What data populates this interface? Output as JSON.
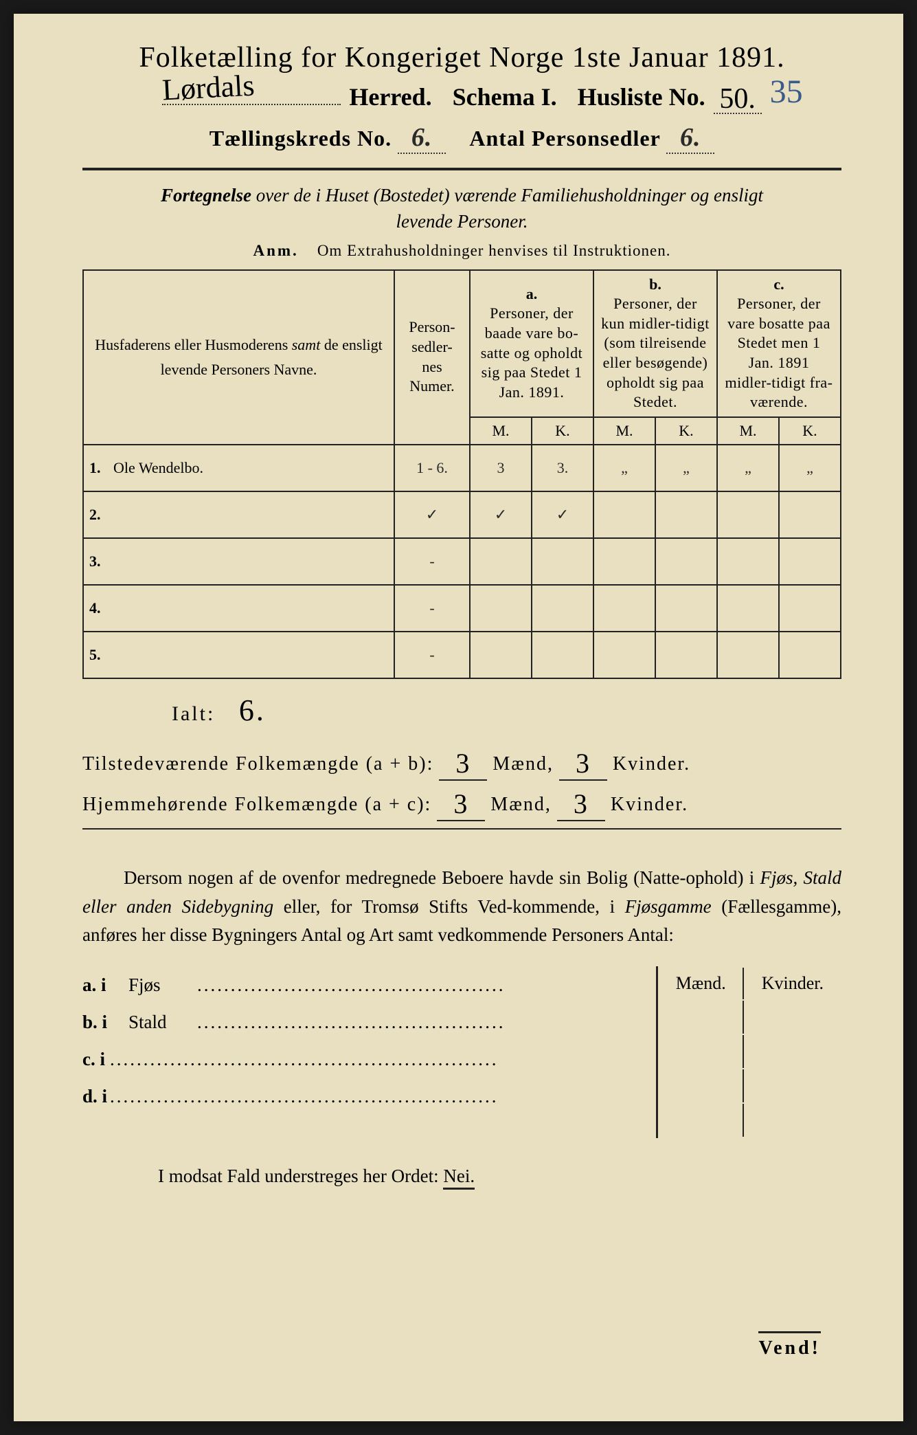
{
  "header": {
    "title": "Folketælling for Kongeriget Norge 1ste Januar 1891.",
    "herred_value": "Lørdals",
    "herred_label": "Herred.",
    "schema_label": "Schema I.",
    "husliste_label": "Husliste No.",
    "husliste_value": "50.",
    "margin_number": "35",
    "kreds_label": "Tællingskreds No.",
    "kreds_value": "6.",
    "personsedler_label": "Antal Personsedler",
    "personsedler_value": "6."
  },
  "subtitle": "Fortegnelse over de i Huset (Bostedet) værende Familiehusholdninger og ensligt levende Personer.",
  "anm_label": "Anm.",
  "anm_text": "Om Extrahusholdninger henvises til Instruktionen.",
  "columns": {
    "names": "Husfaderens eller Husmoderens samt de ensligt levende Personers Navne.",
    "numer": "Person-sedler-nes Numer.",
    "a_label": "a.",
    "a_text": "Personer, der baade vare bosatte og opholdt sig paa Stedet 1 Jan. 1891.",
    "b_label": "b.",
    "b_text": "Personer, der kun midlertidigt (som tilreisende eller besøgende) opholdt sig paa Stedet.",
    "c_label": "c.",
    "c_text": "Personer, der vare bosatte paa Stedet men 1 Jan. 1891 midlertidigt fraværende.",
    "m": "M.",
    "k": "K."
  },
  "rows": [
    {
      "num": "1.",
      "name": "Ole Wendelbo.",
      "numer": "1 - 6.",
      "am": "3",
      "ak": "3.",
      "bm": "„",
      "bk": "„",
      "cm": "„",
      "ck": "„"
    },
    {
      "num": "2.",
      "name": "",
      "numer": "✓",
      "am": "✓",
      "ak": "✓",
      "bm": "",
      "bk": "",
      "cm": "",
      "ck": ""
    },
    {
      "num": "3.",
      "name": "",
      "numer": "-",
      "am": "",
      "ak": "",
      "bm": "",
      "bk": "",
      "cm": "",
      "ck": ""
    },
    {
      "num": "4.",
      "name": "",
      "numer": "-",
      "am": "",
      "ak": "",
      "bm": "",
      "bk": "",
      "cm": "",
      "ck": ""
    },
    {
      "num": "5.",
      "name": "",
      "numer": "-",
      "am": "",
      "ak": "",
      "bm": "",
      "bk": "",
      "cm": "",
      "ck": ""
    }
  ],
  "ialt_label": "Ialt:",
  "ialt_value": "6.",
  "summary": {
    "line1_label": "Tilstedeværende Folkemængde (a + b):",
    "line1_m": "3",
    "line1_k": "3",
    "line2_label": "Hjemmehørende Folkemængde (a + c):",
    "line2_m": "3",
    "line2_k": "3",
    "maend": "Mænd,",
    "kvinder": "Kvinder."
  },
  "para": "Dersom nogen af de ovenfor medregnede Beboere havde sin Bolig (Natteophold) i Fjøs, Stald eller anden Sidebygning eller, for Tromsø Stifts Vedkommende, i Fjøsgamme (Fællesgamme), anføres her disse Bygningers Antal og Art samt vedkommende Personers Antal:",
  "bygning": {
    "maend": "Mænd.",
    "kvinder": "Kvinder.",
    "a": "a.  i",
    "a_item": "Fjøs",
    "b": "b.  i",
    "b_item": "Stald",
    "c": "c.  i",
    "d": "d.  i"
  },
  "modsat": "I modsat Fald understreges her Ordet:",
  "nei": "Nei.",
  "vend": "Vend!",
  "colors": {
    "paper": "#e8e0c0",
    "ink": "#222222",
    "pencil": "#2a2a2a",
    "blue_ink": "#3a5a8a",
    "background": "#1a1a1a"
  }
}
